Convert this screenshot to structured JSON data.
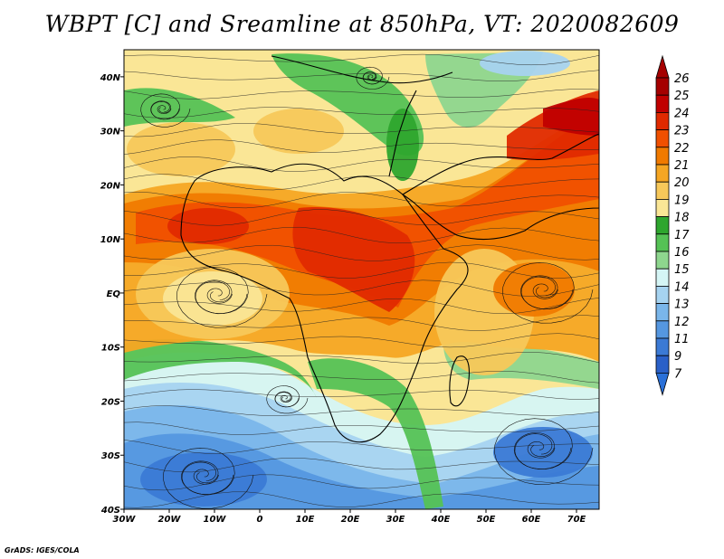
{
  "title": "WBPT [C] and Sreamline at 850hPa, VT: 2020082609",
  "credit": "GrADS: IGES/COLA",
  "map": {
    "lon_range": [
      -30,
      75
    ],
    "lat_range": [
      -40,
      45
    ],
    "x_ticks": [
      {
        "value": -30,
        "label": "30W"
      },
      {
        "value": -20,
        "label": "20W"
      },
      {
        "value": -10,
        "label": "10W"
      },
      {
        "value": 0,
        "label": "0"
      },
      {
        "value": 10,
        "label": "10E"
      },
      {
        "value": 20,
        "label": "20E"
      },
      {
        "value": 30,
        "label": "30E"
      },
      {
        "value": 40,
        "label": "40E"
      },
      {
        "value": 50,
        "label": "50E"
      },
      {
        "value": 60,
        "label": "60E"
      },
      {
        "value": 70,
        "label": "70E"
      }
    ],
    "y_ticks": [
      {
        "value": 40,
        "label": "40N"
      },
      {
        "value": 30,
        "label": "30N"
      },
      {
        "value": 20,
        "label": "20N"
      },
      {
        "value": 10,
        "label": "10N"
      },
      {
        "value": 0,
        "label": "EQ"
      },
      {
        "value": -10,
        "label": "10S"
      },
      {
        "value": -20,
        "label": "20S"
      },
      {
        "value": -30,
        "label": "30S"
      },
      {
        "value": -40,
        "label": "40S"
      }
    ]
  },
  "colorbar": {
    "labels": [
      "26",
      "25",
      "24",
      "23",
      "22",
      "21",
      "20",
      "19",
      "18",
      "17",
      "16",
      "15",
      "14",
      "13",
      "12",
      "11",
      "9",
      "7"
    ],
    "colors": [
      "#a50000",
      "#c00000",
      "#e02a00",
      "#f05000",
      "#f07a00",
      "#f5a623",
      "#f7c85a",
      "#fae696",
      "#2ea62e",
      "#55c255",
      "#8ed68e",
      "#d5f5f5",
      "#a6d3f0",
      "#7ab6ea",
      "#5597e0",
      "#3b7ad5",
      "#2a60c8",
      "#2a60c8"
    ],
    "tip_top_color": "#a50000",
    "tip_bottom_color": "#2a70d8"
  }
}
